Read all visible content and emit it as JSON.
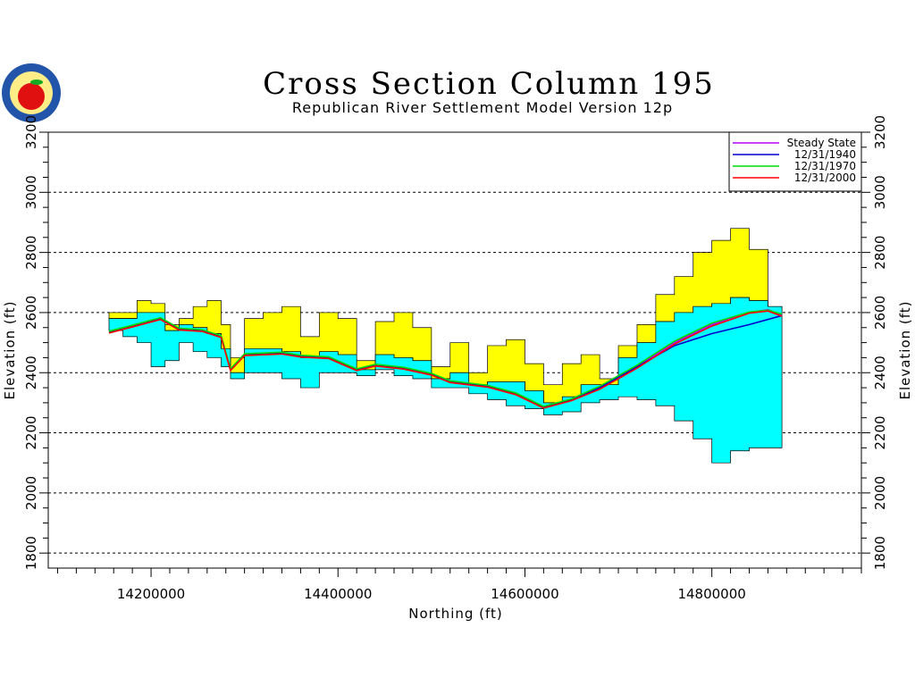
{
  "chart_data": {
    "type": "area",
    "title": "Cross Section  Column  195",
    "subtitle": "Republican  River  Settlement  Model  Version  12p",
    "xlabel": "Northing  (ft)",
    "ylabel": "Elevation  (ft)",
    "xlim": [
      14090000,
      14960000
    ],
    "ylim": [
      1750,
      3200
    ],
    "x_ticks": [
      14200000,
      14400000,
      14600000,
      14800000
    ],
    "x_tick_labels": [
      "14200000",
      "14400000",
      "14600000",
      "14800000"
    ],
    "y_ticks": [
      1800,
      2000,
      2200,
      2400,
      2600,
      2800,
      3000,
      3200
    ],
    "y_tick_labels": [
      "1800",
      "2000",
      "2200",
      "2400",
      "2600",
      "2800",
      "3000",
      "3200"
    ],
    "grid": "horizontal dashed",
    "legend_position": "top-right",
    "colors": {
      "land_surface_fill": "#ffff00",
      "aquifer_fill": "#00ffff",
      "steady_state": "#b000ff",
      "y1940": "#0000cc",
      "y1970": "#00dd00",
      "y2000": "#ff0000"
    },
    "layers": {
      "x": [
        14155000,
        14170000,
        14185000,
        14200000,
        14215000,
        14230000,
        14245000,
        14260000,
        14275000,
        14285000,
        14300000,
        14320000,
        14340000,
        14360000,
        14380000,
        14400000,
        14420000,
        14440000,
        14460000,
        14480000,
        14500000,
        14520000,
        14540000,
        14560000,
        14580000,
        14600000,
        14620000,
        14640000,
        14660000,
        14680000,
        14700000,
        14720000,
        14740000,
        14760000,
        14780000,
        14800000,
        14820000,
        14840000,
        14860000,
        14875000
      ],
      "land_surface": [
        2600,
        2600,
        2640,
        2630,
        2560,
        2580,
        2620,
        2640,
        2560,
        2450,
        2580,
        2600,
        2620,
        2520,
        2600,
        2580,
        2440,
        2570,
        2600,
        2550,
        2420,
        2500,
        2400,
        2490,
        2510,
        2430,
        2360,
        2430,
        2460,
        2380,
        2490,
        2560,
        2660,
        2720,
        2800,
        2840,
        2880,
        2810,
        2620,
        2600
      ],
      "saturated_top": [
        2580,
        2580,
        2600,
        2600,
        2540,
        2560,
        2550,
        2530,
        2480,
        2400,
        2480,
        2480,
        2470,
        2450,
        2470,
        2460,
        2410,
        2460,
        2450,
        2440,
        2380,
        2400,
        2360,
        2370,
        2370,
        2340,
        2300,
        2320,
        2360,
        2360,
        2450,
        2500,
        2570,
        2600,
        2620,
        2630,
        2650,
        2640,
        2620,
        2600
      ],
      "aquifer_bottom": [
        2540,
        2520,
        2500,
        2420,
        2440,
        2500,
        2470,
        2450,
        2420,
        2380,
        2400,
        2400,
        2380,
        2350,
        2400,
        2400,
        2390,
        2410,
        2390,
        2380,
        2350,
        2350,
        2330,
        2310,
        2290,
        2280,
        2260,
        2270,
        2300,
        2310,
        2320,
        2310,
        2290,
        2240,
        2180,
        2100,
        2140,
        2150,
        2150,
        2170
      ]
    },
    "series": [
      {
        "name": "Steady State",
        "x": [
          14155000,
          14180000,
          14210000,
          14230000,
          14255000,
          14275000,
          14285000,
          14300000,
          14340000,
          14360000,
          14390000,
          14420000,
          14440000,
          14470000,
          14500000,
          14520000,
          14560000,
          14590000,
          14620000,
          14650000,
          14680000,
          14720000,
          14760000,
          14800000,
          14840000,
          14860000,
          14875000
        ],
        "y": [
          2535,
          2555,
          2580,
          2545,
          2540,
          2520,
          2410,
          2460,
          2465,
          2455,
          2450,
          2410,
          2425,
          2415,
          2395,
          2370,
          2355,
          2330,
          2285,
          2310,
          2350,
          2420,
          2500,
          2560,
          2600,
          2610,
          2590
        ]
      },
      {
        "name": "12/31/1940",
        "x": [
          14155000,
          14180000,
          14210000,
          14230000,
          14255000,
          14275000,
          14285000,
          14300000,
          14340000,
          14360000,
          14390000,
          14420000,
          14440000,
          14470000,
          14500000,
          14520000,
          14560000,
          14590000,
          14620000,
          14650000,
          14680000,
          14720000,
          14760000,
          14800000,
          14840000,
          14875000
        ],
        "y": [
          2535,
          2555,
          2580,
          2545,
          2540,
          2520,
          2410,
          2460,
          2465,
          2455,
          2450,
          2410,
          2425,
          2415,
          2395,
          2370,
          2355,
          2330,
          2285,
          2310,
          2350,
          2420,
          2490,
          2530,
          2560,
          2590
        ]
      },
      {
        "name": "12/31/1970",
        "x": [
          14155000,
          14180000,
          14210000,
          14230000,
          14255000,
          14275000,
          14285000,
          14300000,
          14340000,
          14360000,
          14390000,
          14420000,
          14440000,
          14470000,
          14500000,
          14520000,
          14560000,
          14590000,
          14620000,
          14650000,
          14680000,
          14720000,
          14760000,
          14800000,
          14840000,
          14860000,
          14875000
        ],
        "y": [
          2538,
          2558,
          2583,
          2548,
          2543,
          2523,
          2413,
          2463,
          2468,
          2458,
          2453,
          2413,
          2428,
          2418,
          2398,
          2373,
          2358,
          2333,
          2288,
          2313,
          2355,
          2425,
          2505,
          2565,
          2602,
          2608,
          2595
        ]
      },
      {
        "name": "12/31/2000",
        "x": [
          14155000,
          14180000,
          14210000,
          14230000,
          14255000,
          14275000,
          14285000,
          14300000,
          14340000,
          14360000,
          14390000,
          14420000,
          14440000,
          14470000,
          14500000,
          14520000,
          14560000,
          14590000,
          14620000,
          14650000,
          14680000,
          14720000,
          14760000,
          14800000,
          14840000,
          14860000,
          14875000
        ],
        "y": [
          2532,
          2552,
          2577,
          2542,
          2537,
          2517,
          2407,
          2457,
          2462,
          2452,
          2447,
          2407,
          2422,
          2412,
          2392,
          2367,
          2352,
          2327,
          2282,
          2307,
          2345,
          2415,
          2495,
          2555,
          2598,
          2605,
          2588
        ]
      }
    ],
    "legend": [
      "Steady State",
      "12/31/1940",
      "12/31/1970",
      "12/31/2000"
    ]
  }
}
